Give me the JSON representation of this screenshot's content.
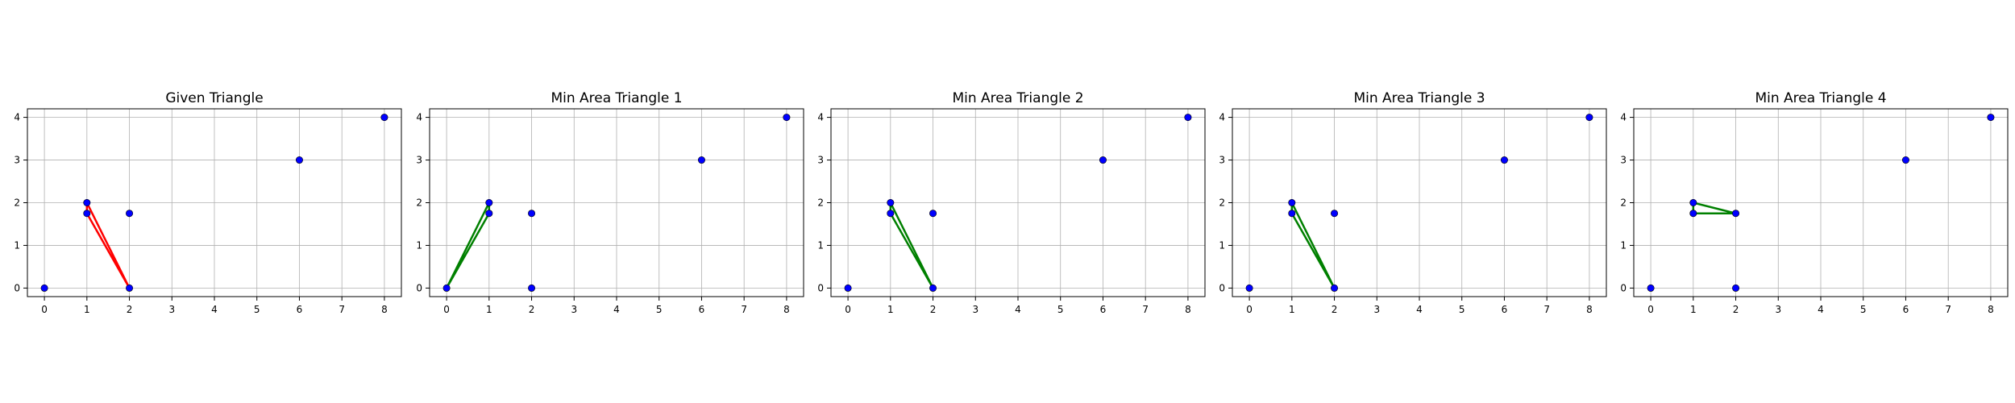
{
  "chart_data": [
    {
      "type": "scatter",
      "title": "Given Triangle",
      "xlabel": "",
      "ylabel": "",
      "xticks": [
        0,
        1,
        2,
        3,
        4,
        5,
        6,
        7,
        8
      ],
      "yticks": [
        0,
        1,
        2,
        3,
        4
      ],
      "xlim": [
        -0.4,
        8.4
      ],
      "ylim": [
        -0.2,
        4.2
      ],
      "grid": true,
      "points": [
        [
          0,
          0
        ],
        [
          1,
          2
        ],
        [
          1,
          1.75
        ],
        [
          2,
          1.75
        ],
        [
          2,
          0
        ],
        [
          6,
          3
        ],
        [
          8,
          4
        ]
      ],
      "point_color": "#0000ff",
      "triangle": [
        [
          1,
          2
        ],
        [
          1,
          1.75
        ],
        [
          2,
          0
        ]
      ],
      "triangle_color": "#ff0000"
    },
    {
      "type": "scatter",
      "title": "Min Area Triangle 1",
      "xlabel": "",
      "ylabel": "",
      "xticks": [
        0,
        1,
        2,
        3,
        4,
        5,
        6,
        7,
        8
      ],
      "yticks": [
        0,
        1,
        2,
        3,
        4
      ],
      "xlim": [
        -0.4,
        8.4
      ],
      "ylim": [
        -0.2,
        4.2
      ],
      "grid": true,
      "points": [
        [
          0,
          0
        ],
        [
          1,
          2
        ],
        [
          1,
          1.75
        ],
        [
          2,
          1.75
        ],
        [
          2,
          0
        ],
        [
          6,
          3
        ],
        [
          8,
          4
        ]
      ],
      "point_color": "#0000ff",
      "triangle": [
        [
          0,
          0
        ],
        [
          1,
          2
        ],
        [
          1,
          1.75
        ]
      ],
      "triangle_color": "#008000"
    },
    {
      "type": "scatter",
      "title": "Min Area Triangle 2",
      "xlabel": "",
      "ylabel": "",
      "xticks": [
        0,
        1,
        2,
        3,
        4,
        5,
        6,
        7,
        8
      ],
      "yticks": [
        0,
        1,
        2,
        3,
        4
      ],
      "xlim": [
        -0.4,
        8.4
      ],
      "ylim": [
        -0.2,
        4.2
      ],
      "grid": true,
      "points": [
        [
          0,
          0
        ],
        [
          1,
          2
        ],
        [
          1,
          1.75
        ],
        [
          2,
          1.75
        ],
        [
          2,
          0
        ],
        [
          6,
          3
        ],
        [
          8,
          4
        ]
      ],
      "point_color": "#0000ff",
      "triangle": [
        [
          1,
          2
        ],
        [
          1,
          1.75
        ],
        [
          2,
          0
        ]
      ],
      "triangle_color": "#008000"
    },
    {
      "type": "scatter",
      "title": "Min Area Triangle 3",
      "xlabel": "",
      "ylabel": "",
      "xticks": [
        0,
        1,
        2,
        3,
        4,
        5,
        6,
        7,
        8
      ],
      "yticks": [
        0,
        1,
        2,
        3,
        4
      ],
      "xlim": [
        -0.4,
        8.4
      ],
      "ylim": [
        -0.2,
        4.2
      ],
      "grid": true,
      "points": [
        [
          0,
          0
        ],
        [
          1,
          2
        ],
        [
          1,
          1.75
        ],
        [
          2,
          1.75
        ],
        [
          2,
          0
        ],
        [
          6,
          3
        ],
        [
          8,
          4
        ]
      ],
      "point_color": "#0000ff",
      "triangle": [
        [
          1,
          2
        ],
        [
          1,
          1.75
        ],
        [
          2,
          0
        ]
      ],
      "triangle_color": "#008000"
    },
    {
      "type": "scatter",
      "title": "Min Area Triangle 4",
      "xlabel": "",
      "ylabel": "",
      "xticks": [
        0,
        1,
        2,
        3,
        4,
        5,
        6,
        7,
        8
      ],
      "yticks": [
        0,
        1,
        2,
        3,
        4
      ],
      "xlim": [
        -0.4,
        8.4
      ],
      "ylim": [
        -0.2,
        4.2
      ],
      "grid": true,
      "points": [
        [
          0,
          0
        ],
        [
          1,
          2
        ],
        [
          1,
          1.75
        ],
        [
          2,
          1.75
        ],
        [
          2,
          0
        ],
        [
          6,
          3
        ],
        [
          8,
          4
        ]
      ],
      "point_color": "#0000ff",
      "triangle": [
        [
          1,
          2
        ],
        [
          1,
          1.75
        ],
        [
          2,
          1.75
        ]
      ],
      "triangle_color": "#008000"
    }
  ]
}
